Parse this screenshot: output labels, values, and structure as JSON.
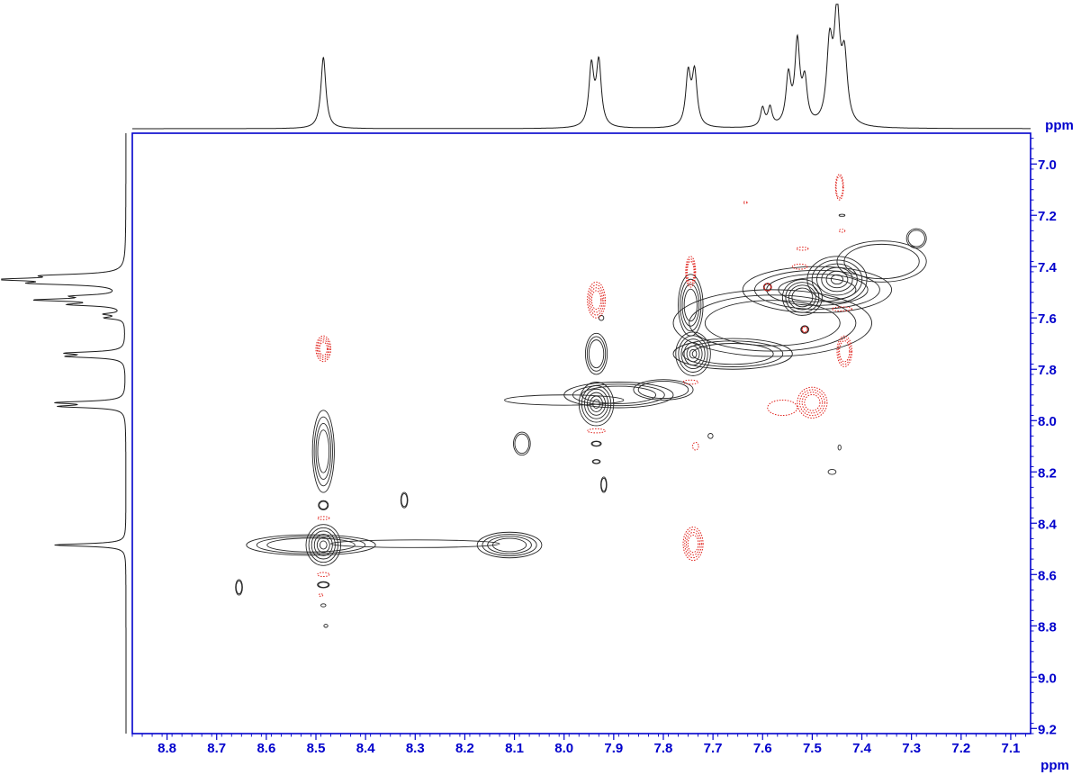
{
  "chart_data": {
    "type": "contour",
    "x": {
      "unit": "ppm",
      "lim": [
        8.87,
        7.06
      ],
      "reversed": true,
      "ticks": [
        8.8,
        8.7,
        8.6,
        8.5,
        8.4,
        8.3,
        8.2,
        8.1,
        8.0,
        7.9,
        7.8,
        7.7,
        7.6,
        7.5,
        7.4,
        7.3,
        7.2,
        7.1
      ],
      "tick_labels": [
        "8.8",
        "8.7",
        "8.6",
        "8.5",
        "8.4",
        "8.3",
        "8.2",
        "8.1",
        "8.0",
        "7.9",
        "7.8",
        "7.7",
        "7.6",
        "7.5",
        "7.4",
        "7.3",
        "7.2",
        "7.1"
      ]
    },
    "y": {
      "unit": "ppm",
      "lim": [
        6.88,
        9.22
      ],
      "ticks": [
        7.0,
        7.2,
        7.4,
        7.6,
        7.8,
        8.0,
        8.2,
        8.4,
        8.6,
        8.8,
        9.0,
        9.2
      ],
      "tick_labels": [
        "7.0",
        "7.2",
        "7.4",
        "7.6",
        "7.8",
        "8.0",
        "8.2",
        "8.4",
        "8.6",
        "8.8",
        "9.0",
        "9.2"
      ]
    },
    "projection_peaks": [
      {
        "ppm": 8.485,
        "height": 0.62,
        "width": 0.006
      },
      {
        "ppm": 7.945,
        "height": 0.52,
        "width": 0.006
      },
      {
        "ppm": 7.93,
        "height": 0.55,
        "width": 0.006
      },
      {
        "ppm": 7.75,
        "height": 0.45,
        "width": 0.006
      },
      {
        "ppm": 7.737,
        "height": 0.46,
        "width": 0.006
      },
      {
        "ppm": 7.6,
        "height": 0.16,
        "width": 0.005
      },
      {
        "ppm": 7.585,
        "height": 0.16,
        "width": 0.005
      },
      {
        "ppm": 7.548,
        "height": 0.42,
        "width": 0.006
      },
      {
        "ppm": 7.53,
        "height": 0.7,
        "width": 0.006
      },
      {
        "ppm": 7.515,
        "height": 0.36,
        "width": 0.006
      },
      {
        "ppm": 7.465,
        "height": 0.66,
        "width": 0.007
      },
      {
        "ppm": 7.45,
        "height": 0.92,
        "width": 0.007
      },
      {
        "ppm": 7.435,
        "height": 0.55,
        "width": 0.007
      }
    ],
    "positive_contours_black": [
      {
        "x": 8.485,
        "y": 8.485,
        "rx": 0.035,
        "ry": 0.08,
        "levels": 6
      },
      {
        "x": 8.51,
        "y": 8.485,
        "rx": 0.13,
        "ry": 0.04,
        "levels": 3
      },
      {
        "x": 8.11,
        "y": 8.485,
        "rx": 0.065,
        "ry": 0.05,
        "levels": 4
      },
      {
        "x": 8.3,
        "y": 8.48,
        "rx": 0.17,
        "ry": 0.015,
        "levels": 1
      },
      {
        "x": 8.485,
        "y": 8.12,
        "rx": 0.022,
        "ry": 0.16,
        "levels": 4
      },
      {
        "x": 8.485,
        "y": 8.33,
        "rx": 0.01,
        "ry": 0.018,
        "levels": 2
      },
      {
        "x": 8.485,
        "y": 8.64,
        "rx": 0.012,
        "ry": 0.012,
        "levels": 2
      },
      {
        "x": 8.485,
        "y": 8.72,
        "rx": 0.005,
        "ry": 0.006,
        "levels": 1
      },
      {
        "x": 8.48,
        "y": 8.8,
        "rx": 0.004,
        "ry": 0.006,
        "levels": 1
      },
      {
        "x": 8.655,
        "y": 8.65,
        "rx": 0.007,
        "ry": 0.03,
        "levels": 2
      },
      {
        "x": 8.322,
        "y": 8.31,
        "rx": 0.007,
        "ry": 0.03,
        "levels": 2
      },
      {
        "x": 8.085,
        "y": 8.09,
        "rx": 0.017,
        "ry": 0.045,
        "levels": 2
      },
      {
        "x": 7.935,
        "y": 7.935,
        "rx": 0.035,
        "ry": 0.085,
        "levels": 6
      },
      {
        "x": 7.89,
        "y": 7.9,
        "rx": 0.11,
        "ry": 0.05,
        "levels": 3
      },
      {
        "x": 8.0,
        "y": 7.92,
        "rx": 0.12,
        "ry": 0.02,
        "levels": 1
      },
      {
        "x": 7.935,
        "y": 7.74,
        "rx": 0.022,
        "ry": 0.08,
        "levels": 3
      },
      {
        "x": 7.935,
        "y": 8.09,
        "rx": 0.01,
        "ry": 0.01,
        "levels": 2
      },
      {
        "x": 7.935,
        "y": 8.16,
        "rx": 0.008,
        "ry": 0.008,
        "levels": 2
      },
      {
        "x": 7.92,
        "y": 8.25,
        "rx": 0.006,
        "ry": 0.03,
        "levels": 2
      },
      {
        "x": 7.925,
        "y": 7.6,
        "rx": 0.005,
        "ry": 0.01,
        "levels": 1
      },
      {
        "x": 7.74,
        "y": 7.74,
        "rx": 0.035,
        "ry": 0.085,
        "levels": 6
      },
      {
        "x": 7.745,
        "y": 7.55,
        "rx": 0.025,
        "ry": 0.12,
        "levels": 4
      },
      {
        "x": 7.66,
        "y": 7.74,
        "rx": 0.12,
        "ry": 0.06,
        "levels": 3
      },
      {
        "x": 7.8,
        "y": 7.88,
        "rx": 0.06,
        "ry": 0.04,
        "levels": 2
      },
      {
        "x": 7.705,
        "y": 8.06,
        "rx": 0.005,
        "ry": 0.01,
        "levels": 1
      },
      {
        "x": 7.52,
        "y": 7.52,
        "rx": 0.04,
        "ry": 0.07,
        "levels": 4
      },
      {
        "x": 7.45,
        "y": 7.45,
        "rx": 0.06,
        "ry": 0.09,
        "levels": 6
      },
      {
        "x": 7.49,
        "y": 7.49,
        "rx": 0.15,
        "ry": 0.09,
        "levels": 4
      },
      {
        "x": 7.58,
        "y": 7.62,
        "rx": 0.2,
        "ry": 0.13,
        "levels": 3
      },
      {
        "x": 7.36,
        "y": 7.38,
        "rx": 0.09,
        "ry": 0.08,
        "levels": 2
      },
      {
        "x": 7.29,
        "y": 7.29,
        "rx": 0.02,
        "ry": 0.038,
        "levels": 2
      },
      {
        "x": 7.59,
        "y": 7.48,
        "rx": 0.008,
        "ry": 0.015,
        "levels": 2
      },
      {
        "x": 7.515,
        "y": 7.645,
        "rx": 0.008,
        "ry": 0.015,
        "levels": 2
      },
      {
        "x": 7.46,
        "y": 8.2,
        "rx": 0.008,
        "ry": 0.01,
        "levels": 1
      },
      {
        "x": 7.445,
        "y": 8.105,
        "rx": 0.003,
        "ry": 0.01,
        "levels": 1
      },
      {
        "x": 7.44,
        "y": 7.2,
        "rx": 0.006,
        "ry": 0.004,
        "levels": 1
      }
    ],
    "negative_contours_red": [
      {
        "x": 8.485,
        "y": 7.72,
        "rx": 0.015,
        "ry": 0.05,
        "levels": 4
      },
      {
        "x": 8.485,
        "y": 8.38,
        "rx": 0.012,
        "ry": 0.006,
        "levels": 1
      },
      {
        "x": 8.485,
        "y": 8.6,
        "rx": 0.012,
        "ry": 0.008,
        "levels": 1
      },
      {
        "x": 8.49,
        "y": 8.68,
        "rx": 0.004,
        "ry": 0.005,
        "levels": 1
      },
      {
        "x": 7.935,
        "y": 7.53,
        "rx": 0.018,
        "ry": 0.07,
        "levels": 4
      },
      {
        "x": 7.935,
        "y": 8.04,
        "rx": 0.018,
        "ry": 0.008,
        "levels": 1
      },
      {
        "x": 7.745,
        "y": 7.42,
        "rx": 0.01,
        "ry": 0.06,
        "levels": 3
      },
      {
        "x": 7.745,
        "y": 7.85,
        "rx": 0.015,
        "ry": 0.008,
        "levels": 1
      },
      {
        "x": 7.74,
        "y": 8.48,
        "rx": 0.02,
        "ry": 0.065,
        "levels": 4
      },
      {
        "x": 7.735,
        "y": 8.1,
        "rx": 0.006,
        "ry": 0.015,
        "levels": 1
      },
      {
        "x": 7.5,
        "y": 7.93,
        "rx": 0.03,
        "ry": 0.06,
        "levels": 4
      },
      {
        "x": 7.56,
        "y": 7.95,
        "rx": 0.03,
        "ry": 0.03,
        "levels": 1
      },
      {
        "x": 7.435,
        "y": 7.73,
        "rx": 0.015,
        "ry": 0.06,
        "levels": 3
      },
      {
        "x": 7.445,
        "y": 7.09,
        "rx": 0.008,
        "ry": 0.05,
        "levels": 2
      },
      {
        "x": 7.44,
        "y": 7.26,
        "rx": 0.006,
        "ry": 0.006,
        "levels": 1
      },
      {
        "x": 7.525,
        "y": 7.4,
        "rx": 0.015,
        "ry": 0.01,
        "levels": 1
      },
      {
        "x": 7.52,
        "y": 7.33,
        "rx": 0.012,
        "ry": 0.006,
        "levels": 1
      },
      {
        "x": 7.59,
        "y": 7.48,
        "rx": 0.008,
        "ry": 0.015,
        "levels": 2
      },
      {
        "x": 7.515,
        "y": 7.645,
        "rx": 0.006,
        "ry": 0.012,
        "levels": 2
      },
      {
        "x": 7.44,
        "y": 7.565,
        "rx": 0.02,
        "ry": 0.008,
        "levels": 1
      },
      {
        "x": 7.635,
        "y": 7.15,
        "rx": 0.004,
        "ry": 0.004,
        "levels": 1
      }
    ]
  }
}
